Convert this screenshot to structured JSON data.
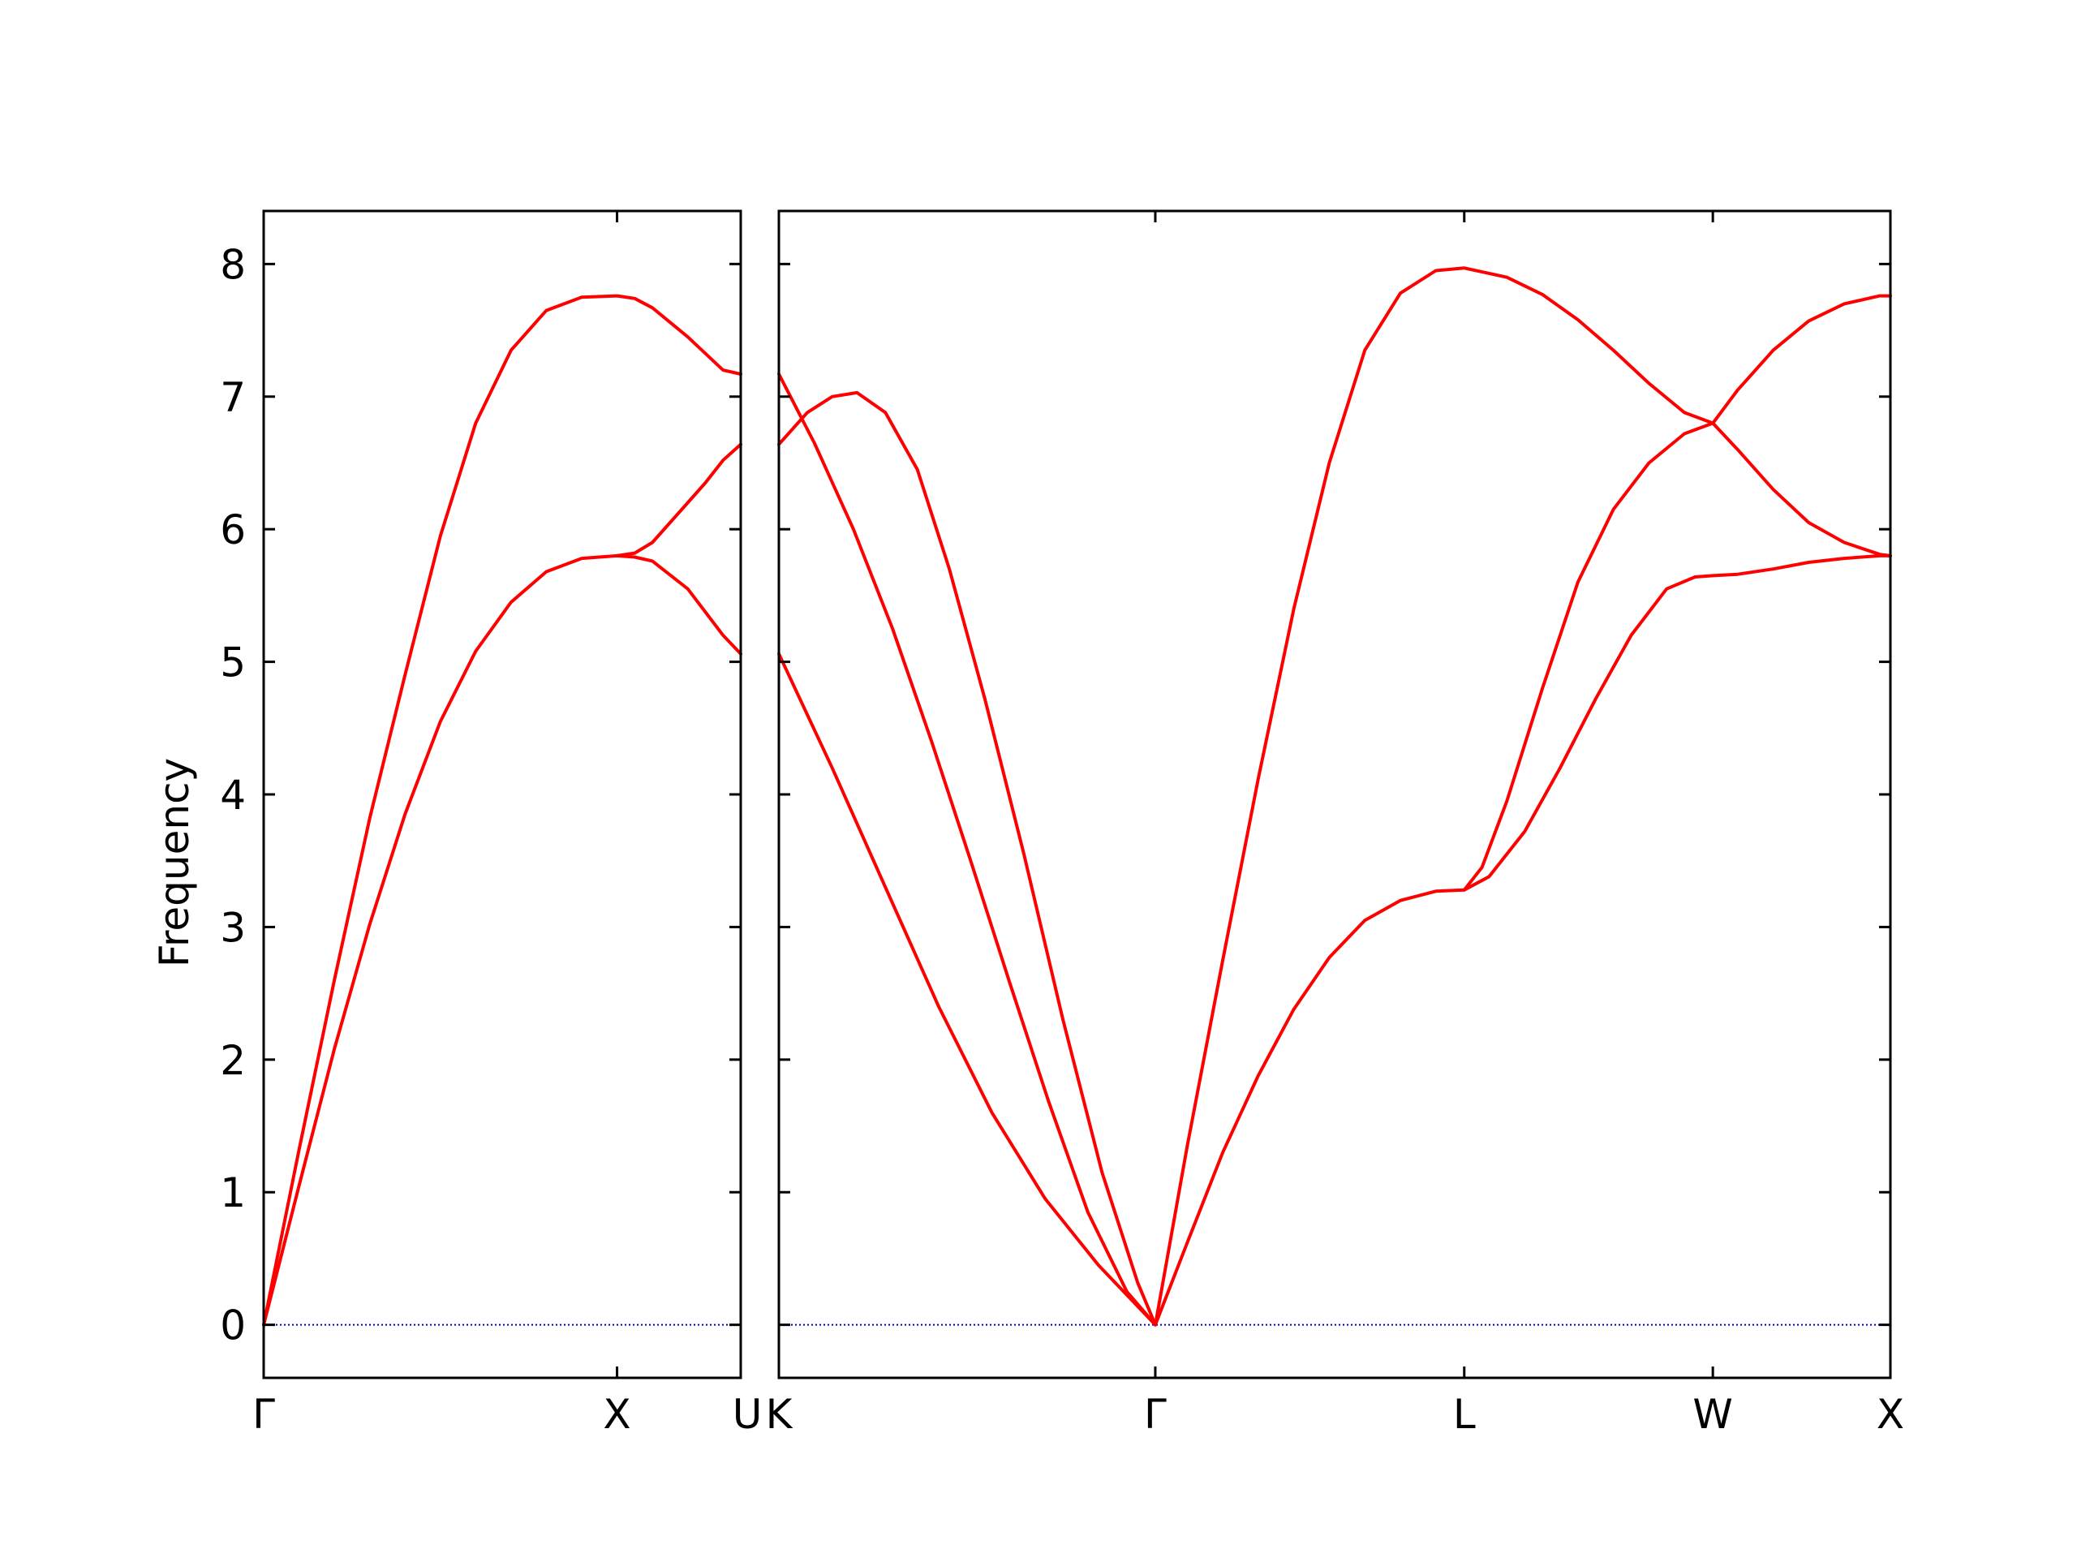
{
  "chart_data": {
    "type": "line",
    "ylabel": "Frequency",
    "ylim": [
      -0.4,
      8.4
    ],
    "yticks": [
      0,
      1,
      2,
      3,
      4,
      5,
      6,
      7,
      8
    ],
    "grid": false,
    "legend": "none",
    "line_color": "#ff0000",
    "zero_line_color": "#0000aa",
    "panels": [
      {
        "name": "left-panel",
        "xlim": [
          0,
          1.35
        ],
        "xticks": [
          {
            "x": 0.0,
            "label": "Γ"
          },
          {
            "x": 1.0,
            "label": "X"
          },
          {
            "x": 1.35,
            "label": "U"
          }
        ],
        "series": [
          {
            "x": [
              0,
              0.1,
              0.2,
              0.3,
              0.4,
              0.5,
              0.6,
              0.7,
              0.8,
              0.9,
              1.0,
              1.05,
              1.1,
              1.2,
              1.3,
              1.35
            ],
            "y": [
              0,
              1.32,
              2.6,
              3.82,
              4.9,
              5.95,
              6.8,
              7.35,
              7.65,
              7.75,
              7.76,
              7.74,
              7.67,
              7.45,
              7.2,
              7.17
            ]
          },
          {
            "x": [
              0,
              0.1,
              0.2,
              0.3,
              0.4,
              0.5,
              0.6,
              0.7,
              0.8,
              0.9,
              1.0,
              1.05,
              1.1,
              1.2,
              1.3,
              1.35
            ],
            "y": [
              0,
              1.05,
              2.08,
              3.02,
              3.85,
              4.55,
              5.08,
              5.45,
              5.68,
              5.78,
              5.8,
              5.79,
              5.76,
              5.55,
              5.2,
              5.06
            ]
          },
          {
            "x": [
              1.0,
              1.05,
              1.1,
              1.15,
              1.2,
              1.25,
              1.3,
              1.35
            ],
            "y": [
              5.8,
              5.82,
              5.9,
              6.05,
              6.2,
              6.35,
              6.52,
              6.64
            ]
          }
        ]
      },
      {
        "name": "right-panel",
        "xlim": [
          1.35,
          4.48
        ],
        "xticks": [
          {
            "x": 1.35,
            "label": "K"
          },
          {
            "x": 2.41,
            "label": "Γ"
          },
          {
            "x": 3.28,
            "label": "L"
          },
          {
            "x": 3.98,
            "label": "W"
          },
          {
            "x": 4.48,
            "label": "X"
          }
        ],
        "series": [
          {
            "x": [
              1.35,
              1.45,
              1.56,
              1.67,
              1.78,
              1.89,
              2.0,
              2.11,
              2.22,
              2.33,
              2.41
            ],
            "y": [
              7.17,
              6.65,
              6.0,
              5.25,
              4.4,
              3.5,
              2.58,
              1.68,
              0.85,
              0.25,
              0
            ]
          },
          {
            "x": [
              1.35,
              1.43,
              1.5,
              1.57,
              1.65,
              1.74,
              1.83,
              1.93,
              2.04,
              2.15,
              2.26,
              2.36,
              2.41
            ],
            "y": [
              6.64,
              6.88,
              7.0,
              7.03,
              6.88,
              6.45,
              5.7,
              4.72,
              3.55,
              2.3,
              1.15,
              0.32,
              0
            ]
          },
          {
            "x": [
              1.35,
              1.5,
              1.65,
              1.8,
              1.95,
              2.1,
              2.25,
              2.41
            ],
            "y": [
              5.06,
              4.2,
              3.3,
              2.4,
              1.6,
              0.95,
              0.45,
              0
            ]
          },
          {
            "x": [
              2.41,
              2.5,
              2.6,
              2.7,
              2.8,
              2.9,
              3.0,
              3.1,
              3.2,
              3.28,
              3.4,
              3.5,
              3.6,
              3.7,
              3.8,
              3.9,
              3.98
            ],
            "y": [
              0,
              1.35,
              2.75,
              4.12,
              5.4,
              6.5,
              7.35,
              7.78,
              7.95,
              7.97,
              7.9,
              7.77,
              7.58,
              7.35,
              7.1,
              6.88,
              6.8
            ]
          },
          {
            "x": [
              2.41,
              2.5,
              2.6,
              2.7,
              2.8,
              2.9,
              3.0,
              3.1,
              3.2,
              3.28
            ],
            "y": [
              0,
              0.62,
              1.3,
              1.88,
              2.38,
              2.77,
              3.05,
              3.2,
              3.27,
              3.28
            ]
          },
          {
            "x": [
              3.28,
              3.33,
              3.4,
              3.5,
              3.6,
              3.7,
              3.8,
              3.9,
              3.98,
              4.05,
              4.15,
              4.25,
              4.35,
              4.45,
              4.48
            ],
            "y": [
              3.28,
              3.45,
              3.95,
              4.8,
              5.6,
              6.15,
              6.5,
              6.72,
              6.8,
              7.05,
              7.35,
              7.57,
              7.7,
              7.76,
              7.76
            ]
          },
          {
            "x": [
              3.28,
              3.35,
              3.45,
              3.55,
              3.65,
              3.75,
              3.85,
              3.93,
              3.98,
              4.05,
              4.15,
              4.25,
              4.35,
              4.45,
              4.48
            ],
            "y": [
              3.28,
              3.38,
              3.72,
              4.2,
              4.72,
              5.2,
              5.55,
              5.64,
              5.65,
              5.66,
              5.7,
              5.75,
              5.78,
              5.8,
              5.8
            ]
          },
          {
            "x": [
              3.98,
              4.05,
              4.15,
              4.25,
              4.35,
              4.45,
              4.48
            ],
            "y": [
              6.8,
              6.6,
              6.3,
              6.05,
              5.9,
              5.81,
              5.8
            ]
          }
        ]
      }
    ]
  }
}
